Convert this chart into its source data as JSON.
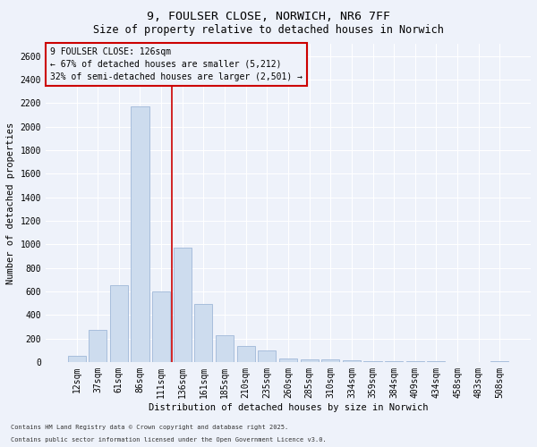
{
  "title1": "9, FOULSER CLOSE, NORWICH, NR6 7FF",
  "title2": "Size of property relative to detached houses in Norwich",
  "xlabel": "Distribution of detached houses by size in Norwich",
  "ylabel": "Number of detached properties",
  "categories": [
    "12sqm",
    "37sqm",
    "61sqm",
    "86sqm",
    "111sqm",
    "136sqm",
    "161sqm",
    "185sqm",
    "210sqm",
    "235sqm",
    "260sqm",
    "285sqm",
    "310sqm",
    "334sqm",
    "359sqm",
    "384sqm",
    "409sqm",
    "434sqm",
    "458sqm",
    "483sqm",
    "508sqm"
  ],
  "values": [
    50,
    270,
    650,
    2175,
    600,
    975,
    490,
    230,
    135,
    100,
    30,
    25,
    20,
    15,
    5,
    5,
    5,
    5,
    0,
    0,
    5
  ],
  "bar_color": "#cddcee",
  "bar_edge_color": "#9fb8d8",
  "vline_color": "#cc0000",
  "vline_index": 4,
  "annotation_text": "9 FOULSER CLOSE: 126sqm\n← 67% of detached houses are smaller (5,212)\n32% of semi-detached houses are larger (2,501) →",
  "annotation_box_color": "#cc0000",
  "ylim": [
    0,
    2700
  ],
  "yticks": [
    0,
    200,
    400,
    600,
    800,
    1000,
    1200,
    1400,
    1600,
    1800,
    2000,
    2200,
    2400,
    2600
  ],
  "footer1": "Contains HM Land Registry data © Crown copyright and database right 2025.",
  "footer2": "Contains public sector information licensed under the Open Government Licence v3.0.",
  "background_color": "#eef2fa",
  "grid_color": "#ffffff",
  "title_fontsize": 9.5,
  "subtitle_fontsize": 8.5,
  "axis_fontsize": 7,
  "label_fontsize": 7.5,
  "annotation_fontsize": 7,
  "footer_fontsize": 5,
  "bar_width": 0.85
}
